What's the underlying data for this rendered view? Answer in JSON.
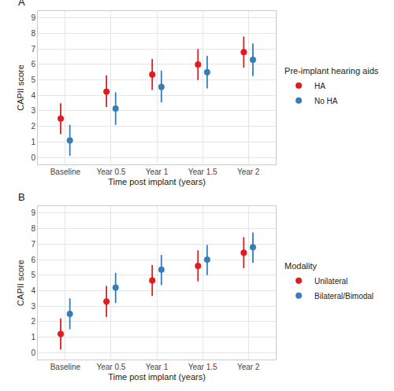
{
  "chart_data": [
    {
      "type": "pointrange",
      "title": "A",
      "x_label": "Time post implant (years)",
      "y_label": "CAPII score",
      "categories": [
        "Baseline",
        "Year 0.5",
        "Year 1",
        "Year 1.5",
        "Year 2"
      ],
      "legend_title": "Pre-implant hearing aids",
      "legend": "right",
      "grid": true,
      "ylim": [
        -0.45,
        9.45
      ],
      "yticks": [
        0,
        1,
        2,
        3,
        4,
        5,
        6,
        7,
        8,
        9
      ],
      "series": [
        {
          "name": "HA",
          "color": "#E41A1C",
          "marker": "circle",
          "values": [
            2.5,
            4.25,
            5.35,
            6.0,
            6.8
          ],
          "ci_lower": [
            1.5,
            3.25,
            4.35,
            5.0,
            5.8
          ],
          "ci_upper": [
            3.5,
            5.3,
            6.35,
            7.0,
            7.8
          ]
        },
        {
          "name": "No HA",
          "color": "#377EB8",
          "marker": "circle",
          "values": [
            1.1,
            3.15,
            4.55,
            5.5,
            6.3
          ],
          "ci_lower": [
            0.1,
            2.1,
            3.55,
            4.45,
            5.25
          ],
          "ci_upper": [
            2.1,
            4.2,
            5.6,
            6.55,
            7.35
          ]
        }
      ]
    },
    {
      "type": "pointrange",
      "title": "B",
      "x_label": "Time post implant (years)",
      "y_label": "CAPII score",
      "categories": [
        "Baseline",
        "Year 0.5",
        "Year 1",
        "Year 1.5",
        "Year 2"
      ],
      "legend_title": "Modality",
      "legend": "right",
      "grid": true,
      "ylim": [
        -0.45,
        9.45
      ],
      "yticks": [
        0,
        1,
        2,
        3,
        4,
        5,
        6,
        7,
        8,
        9
      ],
      "series": [
        {
          "name": "Unilateral",
          "color": "#E41A1C",
          "marker": "circle",
          "values": [
            1.2,
            3.3,
            4.65,
            5.6,
            6.45
          ],
          "ci_lower": [
            0.2,
            2.3,
            3.65,
            4.6,
            5.45
          ],
          "ci_upper": [
            2.2,
            4.3,
            5.65,
            6.6,
            7.45
          ]
        },
        {
          "name": "Bilateral/Bimodal",
          "color": "#377EB8",
          "marker": "circle",
          "values": [
            2.5,
            4.2,
            5.35,
            6.0,
            6.8
          ],
          "ci_lower": [
            1.5,
            3.2,
            4.35,
            5.0,
            5.8
          ],
          "ci_upper": [
            3.5,
            5.15,
            6.3,
            6.95,
            7.75
          ]
        }
      ]
    }
  ]
}
